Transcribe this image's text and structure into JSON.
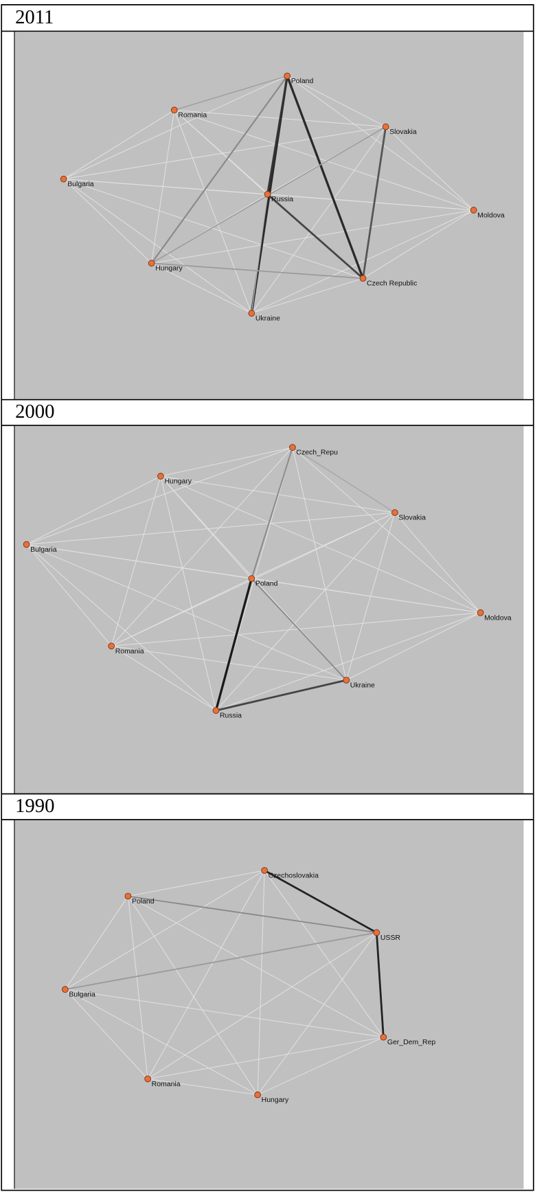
{
  "panels": [
    {
      "year": "2011",
      "nodes": [
        "Poland",
        "Romania",
        "Slovakia",
        "Bulgaria",
        "Russia",
        "Moldova",
        "Hungary",
        "Czech Republic",
        "Ukraine"
      ]
    },
    {
      "year": "2000",
      "nodes": [
        "Czech_Repu",
        "Hungary",
        "Slovakia",
        "Bulgaria",
        "Poland",
        "Moldova",
        "Romania",
        "Ukraine",
        "Russia"
      ]
    },
    {
      "year": "1990",
      "nodes": [
        "Czechoslovakia",
        "Poland",
        "USSR",
        "Bulgaria",
        "Ger_Dem_Rep",
        "Romania",
        "Hungary"
      ]
    }
  ]
}
